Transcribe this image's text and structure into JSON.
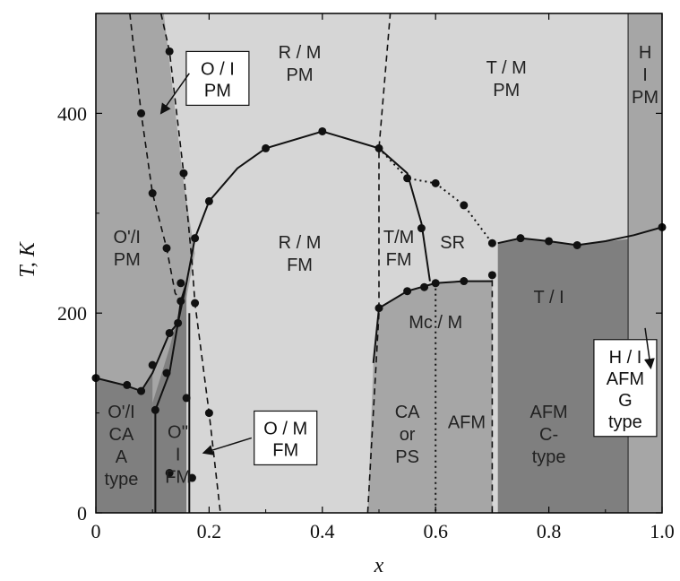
{
  "chart_data": {
    "type": "scatter",
    "xlabel": "x",
    "ylabel": "T, K",
    "xlim": [
      0,
      1.0
    ],
    "ylim": [
      0,
      500
    ],
    "x_ticks": [
      "0",
      "0.2",
      "0.4",
      "0.6",
      "0.8",
      "1.0"
    ],
    "y_ticks": [
      "0",
      "200",
      "400"
    ],
    "grid": false,
    "colors": {
      "light": "#d6d6d6",
      "medium": "#a6a6a6",
      "dark": "#7f7f7f",
      "line": "#111111"
    },
    "regions": [
      {
        "lines": [
          "O'/I",
          "PM"
        ],
        "x": 0.055,
        "y": 270
      },
      {
        "lines": [
          "O'/I",
          "CA",
          "A",
          "type"
        ],
        "x": 0.045,
        "y": 95
      },
      {
        "lines": [
          "O''",
          "I",
          "FM"
        ],
        "x": 0.145,
        "y": 75
      },
      {
        "lines": [
          "R / M",
          "PM"
        ],
        "x": 0.36,
        "y": 455
      },
      {
        "lines": [
          "R / M",
          "FM"
        ],
        "x": 0.36,
        "y": 265
      },
      {
        "lines": [
          "T/M",
          "FM"
        ],
        "x": 0.535,
        "y": 270
      },
      {
        "lines": [
          "SR"
        ],
        "x": 0.63,
        "y": 265
      },
      {
        "lines": [
          "T / M",
          "PM"
        ],
        "x": 0.725,
        "y": 440
      },
      {
        "lines": [
          "H",
          "I",
          "PM"
        ],
        "x": 0.97,
        "y": 455
      },
      {
        "lines": [
          "Mc / M"
        ],
        "x": 0.6,
        "y": 185
      },
      {
        "lines": [
          "CA",
          "or",
          "PS"
        ],
        "x": 0.55,
        "y": 95
      },
      {
        "lines": [
          "AFM"
        ],
        "x": 0.655,
        "y": 85
      },
      {
        "lines": [
          "T / I"
        ],
        "x": 0.8,
        "y": 210
      },
      {
        "lines": [
          "AFM",
          "C-",
          "type"
        ],
        "x": 0.8,
        "y": 95
      }
    ],
    "boxed_labels": [
      {
        "lines": [
          "O / I",
          "PM"
        ],
        "x": 0.215,
        "y": 435
      },
      {
        "lines": [
          "O / M",
          "FM"
        ],
        "x": 0.335,
        "y": 75
      },
      {
        "lines": [
          "H / I",
          "AFM",
          "G",
          "type"
        ],
        "x": 0.935,
        "y": 125
      }
    ],
    "series": [
      {
        "points": [
          [
            0.0,
            135
          ],
          [
            0.055,
            128
          ],
          [
            0.08,
            122
          ],
          [
            0.1,
            148
          ],
          [
            0.105,
            103
          ],
          [
            0.125,
            140
          ],
          [
            0.13,
            180
          ],
          [
            0.13,
            40
          ],
          [
            0.145,
            190
          ],
          [
            0.15,
            212
          ],
          [
            0.15,
            230
          ],
          [
            0.16,
            115
          ],
          [
            0.175,
            275
          ],
          [
            0.2,
            312
          ],
          [
            0.3,
            365
          ],
          [
            0.4,
            382
          ],
          [
            0.5,
            365
          ],
          [
            0.55,
            335
          ],
          [
            0.6,
            330
          ],
          [
            0.65,
            308
          ],
          [
            0.7,
            270
          ],
          [
            0.75,
            275
          ],
          [
            0.8,
            272
          ],
          [
            0.85,
            268
          ],
          [
            0.575,
            285
          ],
          [
            0.5,
            205
          ],
          [
            0.55,
            222
          ],
          [
            0.58,
            226
          ],
          [
            0.6,
            230
          ],
          [
            0.65,
            232
          ],
          [
            0.7,
            238
          ],
          [
            0.08,
            400
          ],
          [
            0.1,
            320
          ],
          [
            0.125,
            265
          ],
          [
            0.13,
            462
          ],
          [
            0.155,
            340
          ],
          [
            0.175,
            210
          ],
          [
            0.2,
            100
          ],
          [
            0.17,
            35
          ],
          [
            1.0,
            286
          ]
        ]
      }
    ]
  }
}
